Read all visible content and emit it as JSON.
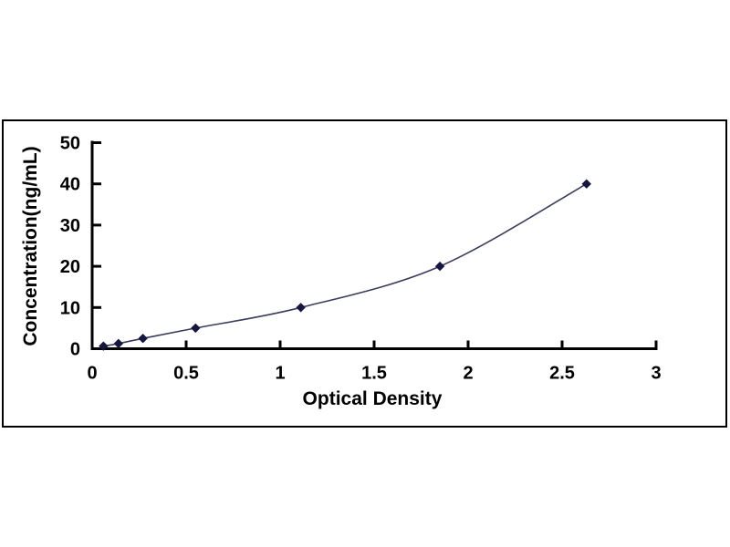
{
  "figure": {
    "background_color": "#ffffff",
    "frame_border_color": "#000000"
  },
  "chart_data": {
    "type": "line",
    "title": "",
    "xlabel": "Optical Density",
    "ylabel": "Concentration(ng/mL)",
    "x": [
      0.06,
      0.14,
      0.27,
      0.55,
      1.11,
      1.85,
      2.63
    ],
    "y": [
      0.625,
      1.25,
      2.5,
      5,
      10,
      20,
      40
    ],
    "xlim": [
      0,
      3
    ],
    "ylim": [
      0,
      50
    ],
    "x_ticks": [
      0,
      0.5,
      1,
      1.5,
      2,
      2.5,
      3
    ],
    "y_ticks": [
      0,
      10,
      20,
      30,
      40,
      50
    ],
    "grid": false,
    "legend": null,
    "marker": "diamond",
    "marker_size": 4.5,
    "line_color": "#3c3c5e",
    "marker_color": "#16163f",
    "axis_color": "#000000"
  }
}
